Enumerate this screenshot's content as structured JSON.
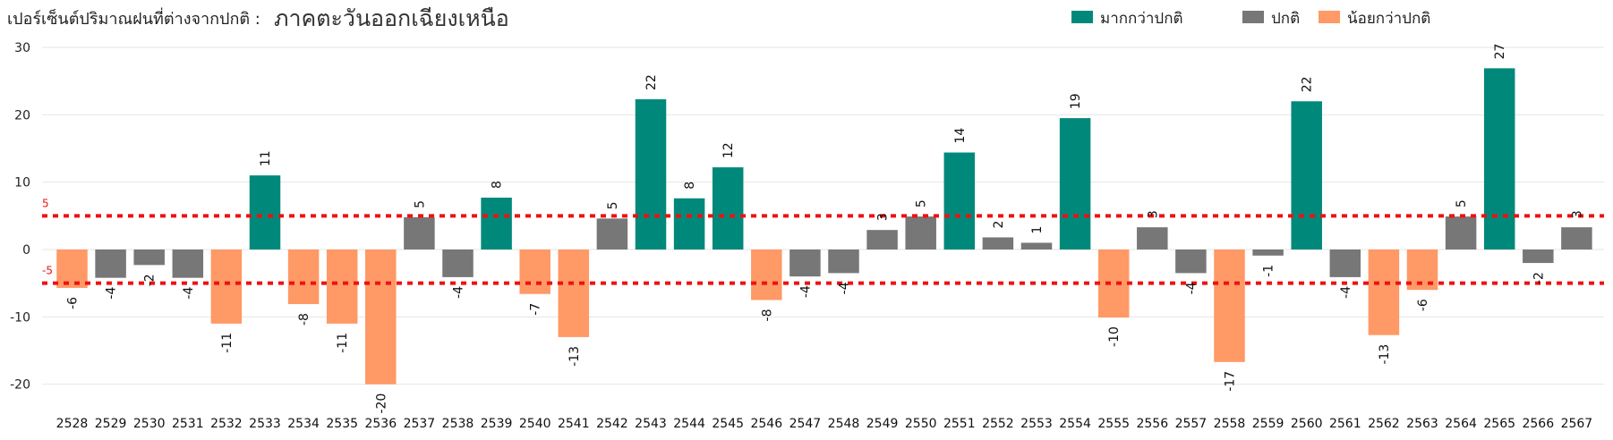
{
  "chart_data": {
    "type": "bar",
    "title": "เปอร์เซ็นต์ปริมาณฝนที่ต่างจากปกติ :",
    "subtitle": "ภาคตะวันออกเฉียงเหนือ",
    "xlabel": "",
    "ylabel": "",
    "ylim": [
      -20,
      30
    ],
    "yticks": [
      -20,
      -10,
      0,
      10,
      20,
      30
    ],
    "grid": true,
    "legend_position": "top-right",
    "legend": [
      {
        "key": "above",
        "label": "มากกว่าปกติ",
        "color": "#00897b"
      },
      {
        "key": "normal",
        "label": "ปกติ",
        "color": "#777777"
      },
      {
        "key": "below",
        "label": "น้อยกว่าปกติ",
        "color": "#ff9966"
      }
    ],
    "reference_lines": [
      {
        "value": 5,
        "label": "5",
        "color": "#ee1111"
      },
      {
        "value": -5,
        "label": "-5",
        "color": "#ee1111"
      }
    ],
    "categories": [
      "2528",
      "2529",
      "2530",
      "2531",
      "2532",
      "2533",
      "2534",
      "2535",
      "2536",
      "2537",
      "2538",
      "2539",
      "2540",
      "2541",
      "2542",
      "2543",
      "2544",
      "2545",
      "2546",
      "2547",
      "2548",
      "2549",
      "2550",
      "2551",
      "2552",
      "2553",
      "2554",
      "2555",
      "2556",
      "2557",
      "2558",
      "2559",
      "2560",
      "2561",
      "2562",
      "2563",
      "2564",
      "2565",
      "2566",
      "2567"
    ],
    "values": [
      -6,
      -4,
      -2,
      -4,
      -11,
      11,
      -8,
      -11,
      -20,
      5,
      -4,
      8,
      -7,
      -13,
      5,
      22,
      8,
      12,
      -8,
      -4,
      -4,
      3,
      5,
      14,
      2,
      1,
      19,
      -10,
      3,
      -4,
      -17,
      -1,
      22,
      -4,
      -13,
      -6,
      5,
      27,
      -2,
      3
    ],
    "bar_values": [
      -5.7,
      -4.2,
      -2.3,
      -4.2,
      -11,
      11,
      -8.1,
      -11,
      -20,
      4.8,
      -4.1,
      7.7,
      -6.6,
      -13,
      4.6,
      22.3,
      7.6,
      12.2,
      -7.5,
      -4,
      -3.5,
      2.9,
      4.9,
      14.4,
      1.8,
      1,
      19.5,
      -10.1,
      3.3,
      -3.5,
      -16.7,
      -0.9,
      22,
      -4.1,
      -12.7,
      -6,
      4.9,
      26.9,
      -2,
      3.3
    ],
    "classes": [
      "below",
      "normal",
      "normal",
      "normal",
      "below",
      "above",
      "below",
      "below",
      "below",
      "normal",
      "normal",
      "above",
      "below",
      "below",
      "normal",
      "above",
      "above",
      "above",
      "below",
      "normal",
      "normal",
      "normal",
      "normal",
      "above",
      "normal",
      "normal",
      "above",
      "below",
      "normal",
      "normal",
      "below",
      "normal",
      "above",
      "normal",
      "below",
      "below",
      "normal",
      "above",
      "normal",
      "normal"
    ]
  }
}
